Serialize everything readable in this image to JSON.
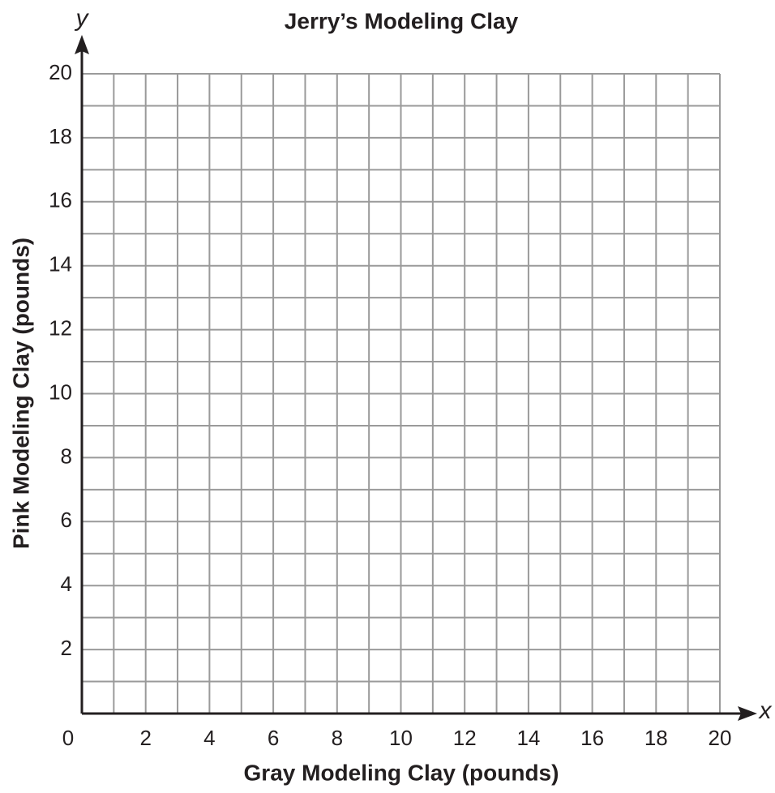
{
  "chart_data": {
    "type": "scatter",
    "title": "Jerry’s Modeling Clay",
    "xlabel": "Gray Modeling Clay (pounds)",
    "ylabel": "Pink Modeling Clay (pounds)",
    "xaxis_symbol": "x",
    "yaxis_symbol": "y",
    "xlim": [
      0,
      20
    ],
    "ylim": [
      0,
      20
    ],
    "xticks": [
      0,
      2,
      4,
      6,
      8,
      10,
      12,
      14,
      16,
      18,
      20
    ],
    "yticks": [
      2,
      4,
      6,
      8,
      10,
      12,
      14,
      16,
      18,
      20
    ],
    "xminorticks": [
      1,
      3,
      5,
      7,
      9,
      11,
      13,
      15,
      17,
      19
    ],
    "yminorticks": [
      1,
      3,
      5,
      7,
      9,
      11,
      13,
      15,
      17,
      19
    ],
    "grid": true,
    "grid_color": "#9a9a9a",
    "axis_color": "#231f20"
  }
}
